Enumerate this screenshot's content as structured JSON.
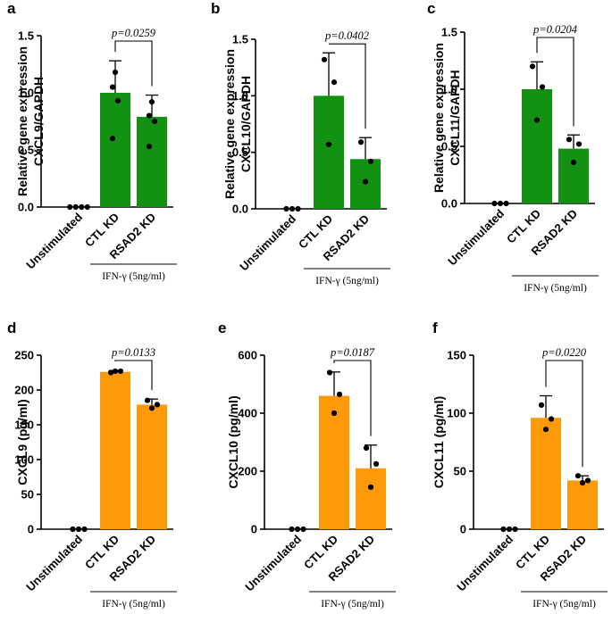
{
  "colors": {
    "green": "#129112",
    "orange": "#fc9a0a",
    "black": "#000000"
  },
  "chart_data": [
    {
      "panel": "a",
      "type": "bar",
      "row": 0,
      "col": 0,
      "color_key": "green",
      "ylabel_lines": [
        "Relative gene expression",
        "CXCL9/GAPDH"
      ],
      "ylim": [
        0,
        1.5
      ],
      "yticks": [
        0.0,
        0.5,
        1.0,
        1.5
      ],
      "ytick_labels": [
        "0.0",
        "0.5",
        "1.0",
        "1.5"
      ],
      "categories": [
        "Unstimulated",
        "CTL KD",
        "RSAD2 KD"
      ],
      "values": [
        0,
        1.0,
        0.79
      ],
      "errors": [
        0,
        0.28,
        0.19
      ],
      "points": [
        [
          0,
          0,
          0,
          0
        ],
        [
          1.18,
          1.05,
          0.93,
          0.6
        ],
        [
          0.92,
          0.8,
          0.75,
          0.53
        ]
      ],
      "pvalue": "p=0.0259",
      "treatment": "IFN-γ (5ng/ml)"
    },
    {
      "panel": "b",
      "type": "bar",
      "row": 0,
      "col": 1,
      "color_key": "green",
      "ylabel_lines": [
        "Relative gene expression",
        "CXCL10/GAPDH"
      ],
      "ylim": [
        0,
        1.5
      ],
      "yticks": [
        0.0,
        0.5,
        1.0,
        1.5
      ],
      "ytick_labels": [
        "0.0",
        "0.5",
        "1.0",
        "1.5"
      ],
      "categories": [
        "Unstimulated",
        "CTL KD",
        "RSAD2 KD"
      ],
      "values": [
        0,
        1.0,
        0.44
      ],
      "errors": [
        0,
        0.38,
        0.19
      ],
      "points": [
        [
          0,
          0,
          0
        ],
        [
          1.32,
          1.12,
          0.57
        ],
        [
          0.59,
          0.42,
          0.24
        ]
      ],
      "pvalue": "p=0.0402",
      "treatment": "IFN-γ (5ng/ml)"
    },
    {
      "panel": "c",
      "type": "bar",
      "row": 0,
      "col": 2,
      "color_key": "green",
      "ylabel_lines": [
        "Relative gene expression",
        "CXCL11/GAPDH"
      ],
      "ylim": [
        0,
        1.5
      ],
      "yticks": [
        0.0,
        0.5,
        1.0,
        1.5
      ],
      "ytick_labels": [
        "0.0",
        "0.5",
        "1.0",
        "1.5"
      ],
      "categories": [
        "Unstimulated",
        "CTL KD",
        "RSAD2 KD"
      ],
      "values": [
        0,
        1.0,
        0.48
      ],
      "errors": [
        0,
        0.24,
        0.12
      ],
      "points": [
        [
          0,
          0,
          0
        ],
        [
          1.2,
          1.02,
          0.73
        ],
        [
          0.56,
          0.52,
          0.36
        ]
      ],
      "pvalue": "p=0.0204",
      "treatment": "IFN-γ (5ng/ml)"
    },
    {
      "panel": "d",
      "type": "bar",
      "row": 1,
      "col": 0,
      "color_key": "orange",
      "ylabel_lines": [
        "CXCL9 (pg/ml)"
      ],
      "ylim": [
        0,
        250
      ],
      "yticks": [
        0,
        50,
        100,
        150,
        200,
        250
      ],
      "ytick_labels": [
        "0",
        "50",
        "100",
        "150",
        "200",
        "250"
      ],
      "categories": [
        "Unstimulated",
        "CTL KD",
        "RSAD2 KD"
      ],
      "values": [
        0,
        226,
        179
      ],
      "errors": [
        0,
        2,
        8
      ],
      "points": [
        [
          0,
          0,
          0
        ],
        [
          225,
          227,
          227
        ],
        [
          185,
          179,
          174
        ]
      ],
      "pvalue": "p=0.0133",
      "treatment": "IFN-γ (5ng/ml)"
    },
    {
      "panel": "e",
      "type": "bar",
      "row": 1,
      "col": 1,
      "color_key": "orange",
      "ylabel_lines": [
        "CXCL10 (pg/ml)"
      ],
      "ylim": [
        0,
        600
      ],
      "yticks": [
        0,
        200,
        400,
        600
      ],
      "ytick_labels": [
        "0",
        "200",
        "400",
        "600"
      ],
      "categories": [
        "Unstimulated",
        "CTL KD",
        "RSAD2 KD"
      ],
      "values": [
        0,
        460,
        210
      ],
      "errors": [
        0,
        82,
        80
      ],
      "points": [
        [
          0,
          0,
          0
        ],
        [
          540,
          465,
          400
        ],
        [
          280,
          225,
          145
        ]
      ],
      "pvalue": "p=0.0187",
      "treatment": "IFN-γ (5ng/ml)"
    },
    {
      "panel": "f",
      "type": "bar",
      "row": 1,
      "col": 2,
      "color_key": "orange",
      "ylabel_lines": [
        "CXCL11 (pg/ml)"
      ],
      "ylim": [
        0,
        150
      ],
      "yticks": [
        0,
        50,
        100,
        150
      ],
      "ytick_labels": [
        "0",
        "50",
        "100",
        "150"
      ],
      "categories": [
        "Unstimulated",
        "CTL KD",
        "RSAD2 KD"
      ],
      "values": [
        0,
        96,
        42
      ],
      "errors": [
        0,
        19,
        4
      ],
      "points": [
        [
          0,
          0,
          0
        ],
        [
          107,
          95,
          86
        ],
        [
          46,
          42,
          40
        ]
      ],
      "pvalue": "p=0.0220",
      "treatment": "IFN-γ (5ng/ml)"
    }
  ]
}
